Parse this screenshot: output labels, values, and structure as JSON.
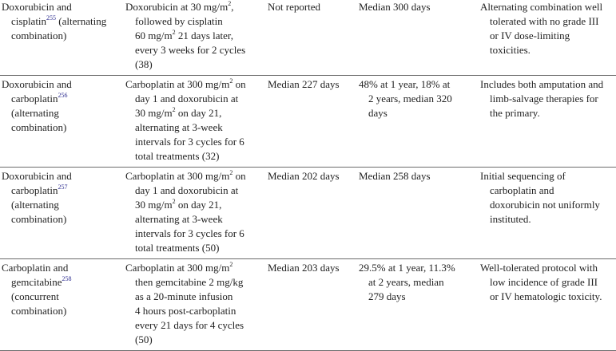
{
  "rows": [
    {
      "treatment": {
        "lines": [
          {
            "pre": "Doxorubicin and"
          },
          {
            "pre": "cisplatin",
            "ref": "255",
            "post": " (alternating",
            "indent": true
          },
          {
            "pre": "combination)",
            "indent": true
          }
        ]
      },
      "protocol": {
        "lines": [
          {
            "pre": "Doxorubicin at 30 mg/m",
            "sup": "2",
            "post": ","
          },
          {
            "pre": "followed by cisplatin",
            "indent": true
          },
          {
            "pre": "60 mg/m",
            "sup": "2",
            "post": " 21 days later,",
            "indent": true
          },
          {
            "pre": "every 3 weeks for 2 cycles",
            "indent": true
          },
          {
            "pre": "(38)",
            "indent": true
          }
        ]
      },
      "dfi": {
        "lines": [
          {
            "pre": "Not reported"
          }
        ]
      },
      "survival": {
        "lines": [
          {
            "pre": "Median 300 days"
          }
        ]
      },
      "comments": {
        "lines": [
          {
            "pre": "Alternating combination well"
          },
          {
            "pre": "tolerated with no grade III",
            "indent": true
          },
          {
            "pre": "or IV dose-limiting",
            "indent": true
          },
          {
            "pre": "toxicities.",
            "indent": true
          }
        ]
      }
    },
    {
      "treatment": {
        "lines": [
          {
            "pre": "Doxorubicin and"
          },
          {
            "pre": "carboplatin",
            "ref": "256",
            "indent": true
          },
          {
            "pre": "(alternating",
            "indent": true
          },
          {
            "pre": "combination)",
            "indent": true
          }
        ]
      },
      "protocol": {
        "lines": [
          {
            "pre": "Carboplatin at 300 mg/m",
            "sup": "2",
            "post": " on"
          },
          {
            "pre": "day 1 and doxorubicin at",
            "indent": true
          },
          {
            "pre": "30 mg/m",
            "sup": "2",
            "post": " on day 21,",
            "indent": true
          },
          {
            "pre": "alternating at 3-week",
            "indent": true
          },
          {
            "pre": "intervals for 3 cycles for 6",
            "indent": true
          },
          {
            "pre": "total treatments (32)",
            "indent": true
          }
        ]
      },
      "dfi": {
        "lines": [
          {
            "pre": "Median 227 days"
          }
        ]
      },
      "survival": {
        "lines": [
          {
            "pre": "48% at 1 year, 18% at"
          },
          {
            "pre": "2 years, median 320",
            "indent": true
          },
          {
            "pre": "days",
            "indent": true
          }
        ]
      },
      "comments": {
        "lines": [
          {
            "pre": "Includes both amputation and"
          },
          {
            "pre": "limb-salvage therapies for",
            "indent": true
          },
          {
            "pre": "the primary.",
            "indent": true
          }
        ]
      }
    },
    {
      "treatment": {
        "lines": [
          {
            "pre": "Doxorubicin and"
          },
          {
            "pre": "carboplatin",
            "ref": "257",
            "indent": true
          },
          {
            "pre": "(alternating",
            "indent": true
          },
          {
            "pre": "combination)",
            "indent": true
          }
        ]
      },
      "protocol": {
        "lines": [
          {
            "pre": "Carboplatin at 300 mg/m",
            "sup": "2",
            "post": " on"
          },
          {
            "pre": "day 1 and doxorubicin at",
            "indent": true
          },
          {
            "pre": "30 mg/m",
            "sup": "2",
            "post": " on day 21,",
            "indent": true
          },
          {
            "pre": "alternating at 3-week",
            "indent": true
          },
          {
            "pre": "intervals for 3 cycles for 6",
            "indent": true
          },
          {
            "pre": "total treatments (50)",
            "indent": true
          }
        ]
      },
      "dfi": {
        "lines": [
          {
            "pre": "Median 202 days"
          }
        ]
      },
      "survival": {
        "lines": [
          {
            "pre": "Median 258 days"
          }
        ]
      },
      "comments": {
        "lines": [
          {
            "pre": "Initial sequencing of"
          },
          {
            "pre": "carboplatin and",
            "indent": true
          },
          {
            "pre": "doxorubicin not uniformly",
            "indent": true
          },
          {
            "pre": "instituted.",
            "indent": true
          }
        ]
      }
    },
    {
      "treatment": {
        "lines": [
          {
            "pre": "Carboplatin and"
          },
          {
            "pre": "gemcitabine",
            "ref": "258",
            "indent": true
          },
          {
            "pre": "(concurrent",
            "indent": true
          },
          {
            "pre": "combination)",
            "indent": true
          }
        ]
      },
      "protocol": {
        "lines": [
          {
            "pre": "Carboplatin at 300 mg/m",
            "sup": "2"
          },
          {
            "pre": "then gemcitabine 2 mg/kg",
            "indent": true
          },
          {
            "pre": "as a 20-minute infusion",
            "indent": true
          },
          {
            "pre": "4 hours post-carboplatin",
            "indent": true
          },
          {
            "pre": "every 21 days for 4 cycles",
            "indent": true
          },
          {
            "pre": "(50)",
            "indent": true
          }
        ]
      },
      "dfi": {
        "lines": [
          {
            "pre": "Median 203 days"
          }
        ]
      },
      "survival": {
        "lines": [
          {
            "pre": "29.5% at 1 year, 11.3%"
          },
          {
            "pre": "at 2 years, median",
            "indent": true
          },
          {
            "pre": "279 days",
            "indent": true
          }
        ]
      },
      "comments": {
        "lines": [
          {
            "pre": "Well-tolerated protocol with"
          },
          {
            "pre": "low incidence of grade III",
            "indent": true
          },
          {
            "pre": "or IV hematologic toxicity.",
            "indent": true
          }
        ]
      }
    }
  ]
}
